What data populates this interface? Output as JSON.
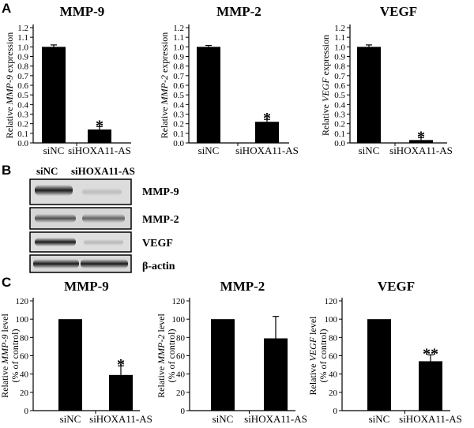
{
  "panels": {
    "a": {
      "letter": "A"
    },
    "b": {
      "letter": "B",
      "lane_labels": [
        "siNC",
        "siHOXA11-AS"
      ],
      "bands": [
        "MMP-9",
        "MMP-2",
        "VEGF",
        "β-actin"
      ]
    },
    "c": {
      "letter": "C"
    }
  },
  "chart_data": [
    {
      "panel": "A",
      "type": "bar",
      "title": "MMP-9",
      "ylabel_pre": "Relative ",
      "ylabel_em": "MMP-9",
      "ylabel_post": " expression",
      "ylabel_line2": "",
      "categories": [
        "siNC",
        "siHOXA11-AS"
      ],
      "values": [
        1.0,
        0.14
      ],
      "errors": [
        0.02,
        0.03
      ],
      "annotations": [
        "",
        "*"
      ],
      "ylim": [
        0,
        1.2
      ],
      "yticks": [
        "0.0",
        "0.1",
        "0.2",
        "0.3",
        "0.4",
        "0.5",
        "0.6",
        "0.7",
        "0.8",
        "0.9",
        "1.0",
        "1.1",
        "1.2"
      ]
    },
    {
      "panel": "A",
      "type": "bar",
      "title": "MMP-2",
      "ylabel_pre": "Relative ",
      "ylabel_em": "MMP-2",
      "ylabel_post": " expression",
      "ylabel_line2": "",
      "categories": [
        "siNC",
        "siHOXA11-AS"
      ],
      "values": [
        1.0,
        0.22
      ],
      "errors": [
        0.015,
        0.025
      ],
      "annotations": [
        "",
        "*"
      ],
      "ylim": [
        0,
        1.2
      ],
      "yticks": [
        "0.0",
        "0.1",
        "0.2",
        "0.3",
        "0.4",
        "0.5",
        "0.6",
        "0.7",
        "0.8",
        "0.9",
        "1.0",
        "1.1",
        "1.2"
      ]
    },
    {
      "panel": "A",
      "type": "bar",
      "title": "VEGF",
      "ylabel_pre": "Relative ",
      "ylabel_em": "VEGF",
      "ylabel_post": " expression",
      "ylabel_line2": "",
      "categories": [
        "siNC",
        "siHOXA11-AS"
      ],
      "values": [
        1.0,
        0.03
      ],
      "errors": [
        0.02,
        0.025
      ],
      "annotations": [
        "",
        "*"
      ],
      "ylim": [
        0,
        1.2
      ],
      "yticks": [
        "0.0",
        "0.1",
        "0.2",
        "0.3",
        "0.4",
        "0.5",
        "0.6",
        "0.7",
        "0.8",
        "0.9",
        "1.0",
        "1.1",
        "1.2"
      ]
    },
    {
      "panel": "C",
      "type": "bar",
      "title": "MMP-9",
      "ylabel_pre": "Relative ",
      "ylabel_em": "MMP-9",
      "ylabel_post": " level",
      "ylabel_line2": "(% of control)",
      "categories": [
        "siNC",
        "siHOXA11-AS"
      ],
      "values": [
        100,
        39
      ],
      "errors": [
        0,
        10
      ],
      "annotations": [
        "",
        "*"
      ],
      "ylim": [
        0,
        120
      ],
      "yticks": [
        "0",
        "20",
        "40",
        "60",
        "80",
        "100",
        "120"
      ]
    },
    {
      "panel": "C",
      "type": "bar",
      "title": "MMP-2",
      "ylabel_pre": "Relative ",
      "ylabel_em": "MMP-2",
      "ylabel_post": " level",
      "ylabel_line2": "(% of control)",
      "categories": [
        "siNC",
        "siHOXA11-AS"
      ],
      "values": [
        100,
        79
      ],
      "errors": [
        0,
        24
      ],
      "annotations": [
        "",
        ""
      ],
      "ylim": [
        0,
        120
      ],
      "yticks": [
        "0",
        "20",
        "40",
        "60",
        "80",
        "100",
        "120"
      ]
    },
    {
      "panel": "C",
      "type": "bar",
      "title": "VEGF",
      "ylabel_pre": "Relative ",
      "ylabel_em": "VEGF",
      "ylabel_post": " level",
      "ylabel_line2": "(% of control)",
      "categories": [
        "siNC",
        "siHOXA11-AS"
      ],
      "values": [
        100,
        54
      ],
      "errors": [
        0,
        7
      ],
      "annotations": [
        "",
        "**"
      ],
      "ylim": [
        0,
        120
      ],
      "yticks": [
        "0",
        "20",
        "40",
        "60",
        "80",
        "100",
        "120"
      ]
    }
  ]
}
